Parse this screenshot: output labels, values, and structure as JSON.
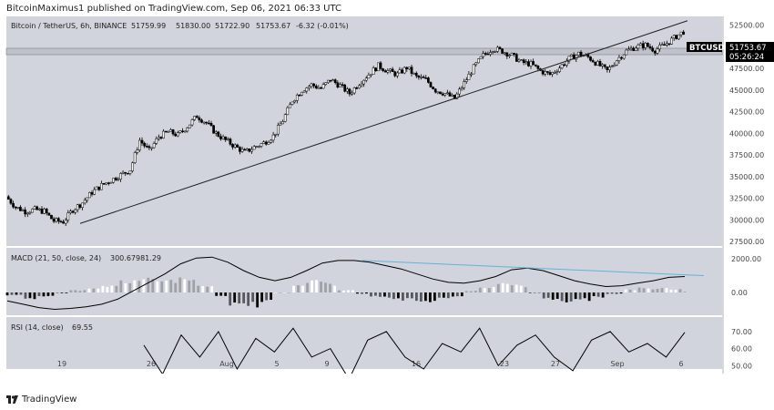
{
  "header": {
    "publisher_text": "BitcoinMaximus1 published on TradingView.com, Sep 06, 2021 06:33 UTC"
  },
  "footer": {
    "brand": "TradingView"
  },
  "symbol_info": {
    "name": "Bitcoin / TetherUS, 6h, BINANCE",
    "open": "51759.99",
    "high": "51830.00",
    "low": "51722.90",
    "close": "51753.67",
    "change": "-6.32 (-0.01%)"
  },
  "price_label": {
    "ticker": "BTCUSDT",
    "price": "51753.67",
    "countdown": "05:26:24"
  },
  "macd_info": {
    "label": "MACD (21, 50, close, 24)",
    "value1": "300.67",
    "value2": "981.29"
  },
  "rsi_info": {
    "label": "RSI (14, close)",
    "value": "69.55"
  },
  "colors": {
    "panel_bg": "#d1d4dc",
    "candle_up": "#ffffff",
    "candle_down": "#000000",
    "divergence_line": "#5fb5d8",
    "grid": "#c4c7cf"
  },
  "chart_data": {
    "type": "candlestick",
    "title": "Bitcoin / TetherUS, 6h, BINANCE",
    "x_ticks": [
      "19",
      "26",
      "Aug",
      "5",
      "9",
      "16",
      "23",
      "27",
      "Sep",
      "6"
    ],
    "price_ticks": [
      "52500.00",
      "50000.00",
      "47500.00",
      "45000.00",
      "42500.00",
      "40000.00",
      "37500.00",
      "35000.00",
      "32500.00",
      "30000.00",
      "27500.00"
    ],
    "price_range": [
      27000,
      53500
    ],
    "macd_ticks": [
      "2000.00",
      "0.00"
    ],
    "rsi_ticks": [
      "70.00",
      "60.00",
      "50.00"
    ],
    "close_path": [
      32700,
      31500,
      31000,
      31200,
      31000,
      29900,
      29800,
      31200,
      32000,
      33200,
      34000,
      34600,
      35200,
      35800,
      39200,
      38000,
      39600,
      40200,
      39800,
      40800,
      42000,
      41200,
      40000,
      39200,
      38500,
      37800,
      38400,
      38900,
      39700,
      41500,
      43800,
      45000,
      45600,
      45200,
      46200,
      45500,
      44600,
      45800,
      46800,
      47800,
      47200,
      46800,
      47600,
      46500,
      46200,
      45000,
      44600,
      44000,
      45800,
      47600,
      49000,
      49800,
      49500,
      49000,
      48200,
      48000,
      47200,
      46800,
      47600,
      48600,
      49200,
      48800,
      48000,
      47200,
      48500,
      49500,
      50000,
      50200,
      49600,
      50200,
      51000,
      51753
    ],
    "macd_series": [
      -500,
      -700,
      -900,
      -1000,
      -950,
      -850,
      -700,
      -400,
      100,
      600,
      1100,
      1700,
      2050,
      2100,
      1800,
      1300,
      900,
      700,
      900,
      1300,
      1750,
      1900,
      1900,
      1800,
      1600,
      1400,
      1100,
      800,
      600,
      550,
      700,
      950,
      1350,
      1450,
      1300,
      1000,
      700,
      500,
      350,
      400,
      550,
      700,
      900,
      950
    ],
    "macd_divergence_line": [
      1900,
      1000
    ],
    "rsi_series": [
      62,
      45,
      68,
      55,
      70,
      48,
      66,
      58,
      72,
      55,
      60,
      42,
      65,
      70,
      55,
      48,
      63,
      58,
      72,
      50,
      62,
      68,
      55,
      47,
      65,
      70,
      58,
      63,
      55,
      69.55
    ]
  }
}
